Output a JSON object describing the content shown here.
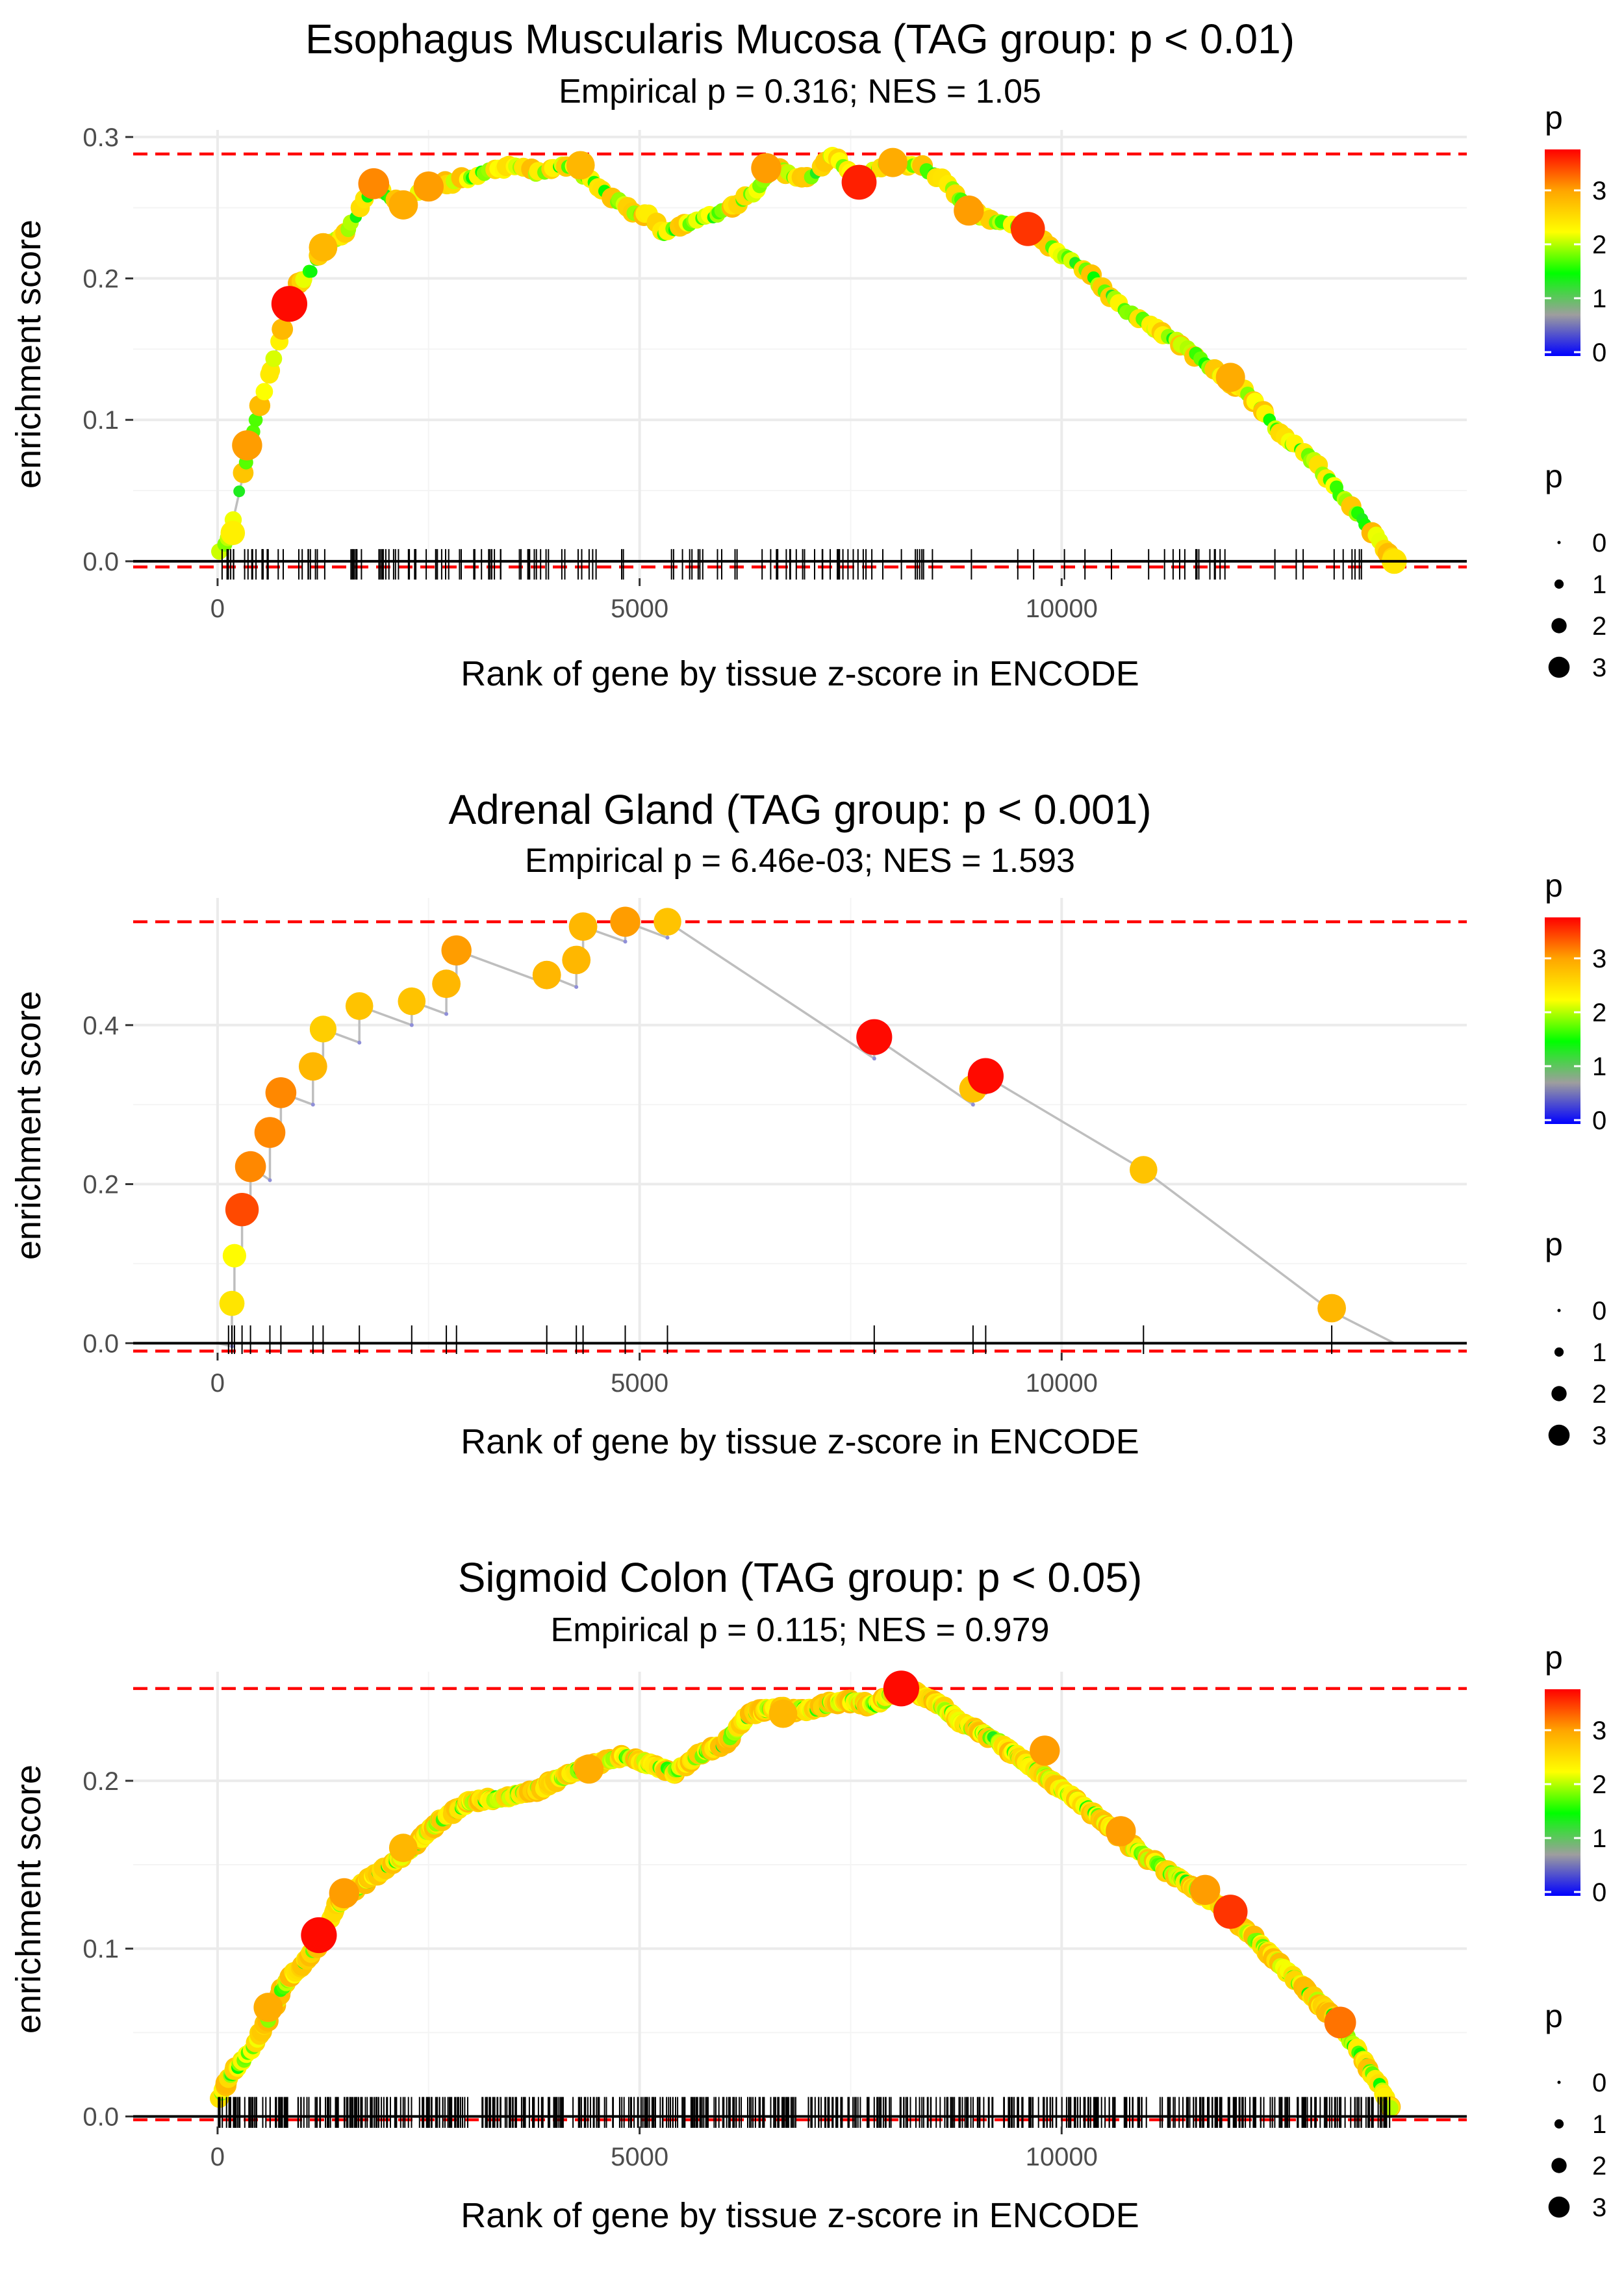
{
  "colors": {
    "threshold_line": "#ff0000",
    "curve": "#bebebe",
    "gridline": "#ebebeb",
    "axis_zero": "#000000",
    "gradient_stops": [
      "#0000ff",
      "#9e9e9e",
      "#00ff00",
      "#ffff00",
      "#ffa500",
      "#ff0000"
    ]
  },
  "legend": {
    "color_title": "p",
    "color_ticks": [
      "0",
      "1",
      "2",
      "3"
    ],
    "size_title": "p",
    "size_ticks": [
      "0",
      "1",
      "2",
      "3"
    ]
  },
  "chart_data": [
    {
      "type": "line",
      "title": "Esophagus Muscularis Mucosa (TAG group: p < 0.01)",
      "subtitle": "Empirical p = 0.316; NES = 1.05",
      "xlabel": "Rank of gene by tissue z-score in ENCODE",
      "ylabel": "enrichment score",
      "xlim": [
        -1000,
        14800
      ],
      "ylim": [
        -0.012,
        0.305
      ],
      "xticks": [
        0,
        5000,
        10000
      ],
      "xtick_labels": [
        "0",
        "5000",
        "10000"
      ],
      "yticks": [
        0,
        0.1,
        0.2,
        0.3
      ],
      "ytick_labels": [
        "0.0",
        "0.1",
        "0.2",
        "0.3"
      ],
      "hlines": [
        0.288,
        -0.004
      ],
      "n_genes": 13940,
      "curve_points": [
        [
          0,
          0.005
        ],
        [
          150,
          0.02
        ],
        [
          300,
          0.06
        ],
        [
          450,
          0.1
        ],
        [
          600,
          0.13
        ],
        [
          750,
          0.16
        ],
        [
          850,
          0.182
        ],
        [
          950,
          0.195
        ],
        [
          1100,
          0.205
        ],
        [
          1250,
          0.222
        ],
        [
          1450,
          0.228
        ],
        [
          1600,
          0.24
        ],
        [
          1850,
          0.267
        ],
        [
          2000,
          0.258
        ],
        [
          2200,
          0.252
        ],
        [
          2500,
          0.265
        ],
        [
          2800,
          0.268
        ],
        [
          3000,
          0.272
        ],
        [
          3200,
          0.275
        ],
        [
          3500,
          0.28
        ],
        [
          3800,
          0.275
        ],
        [
          4000,
          0.278
        ],
        [
          4200,
          0.28
        ],
        [
          4400,
          0.27
        ],
        [
          4900,
          0.248
        ],
        [
          5100,
          0.245
        ],
        [
          5300,
          0.232
        ],
        [
          5600,
          0.24
        ],
        [
          5900,
          0.245
        ],
        [
          6200,
          0.255
        ],
        [
          6400,
          0.262
        ],
        [
          6600,
          0.28
        ],
        [
          6800,
          0.272
        ],
        [
          7000,
          0.27
        ],
        [
          7300,
          0.288
        ],
        [
          7600,
          0.268
        ],
        [
          7800,
          0.278
        ],
        [
          8000,
          0.282
        ],
        [
          8300,
          0.28
        ],
        [
          8600,
          0.27
        ],
        [
          8900,
          0.248
        ],
        [
          9200,
          0.24
        ],
        [
          9600,
          0.235
        ],
        [
          9900,
          0.22
        ],
        [
          10300,
          0.205
        ],
        [
          10700,
          0.18
        ],
        [
          11100,
          0.165
        ],
        [
          11500,
          0.15
        ],
        [
          11900,
          0.13
        ],
        [
          12200,
          0.12
        ],
        [
          12600,
          0.09
        ],
        [
          13000,
          0.07
        ],
        [
          13400,
          0.04
        ],
        [
          13700,
          0.02
        ],
        [
          13940,
          0.0
        ]
      ],
      "gene_count": 160,
      "gene_seed": 11,
      "gene_clusters": [
        [
          0,
          1500,
          0.28
        ],
        [
          1500,
          4500,
          0.3
        ],
        [
          4500,
          5400,
          0.06
        ],
        [
          5400,
          8600,
          0.22
        ],
        [
          8600,
          10800,
          0.04
        ],
        [
          10800,
          12400,
          0.14
        ],
        [
          12400,
          13900,
          0.1
        ]
      ],
      "highlight_points": [
        [
          180,
          0.02,
          2.5
        ],
        [
          350,
          0.082,
          3.2
        ],
        [
          850,
          0.182,
          3.9
        ],
        [
          1250,
          0.222,
          3.0
        ],
        [
          1850,
          0.267,
          3.3
        ],
        [
          2200,
          0.252,
          3.1
        ],
        [
          2500,
          0.265,
          3.2
        ],
        [
          4300,
          0.28,
          3.0
        ],
        [
          6500,
          0.278,
          3.2
        ],
        [
          7600,
          0.268,
          3.8
        ],
        [
          8000,
          0.282,
          3.1
        ],
        [
          8900,
          0.248,
          3.2
        ],
        [
          9600,
          0.235,
          3.7
        ],
        [
          12000,
          0.13,
          3.1
        ],
        [
          13940,
          0.0,
          2.6
        ]
      ]
    },
    {
      "type": "line",
      "title": "Adrenal Gland (TAG group: p < 0.001)",
      "subtitle": "Empirical p = 6.46e-03; NES = 1.593",
      "xlabel": "Rank of gene by tissue z-score in ENCODE",
      "ylabel": "enrichment score",
      "xlim": [
        -1000,
        14800
      ],
      "ylim": [
        -0.012,
        0.56
      ],
      "xticks": [
        0,
        5000,
        10000
      ],
      "xtick_labels": [
        "0",
        "5000",
        "10000"
      ],
      "yticks": [
        0,
        0.2,
        0.4
      ],
      "ytick_labels": [
        "0.0",
        "0.2",
        "0.4"
      ],
      "hlines": [
        0.53,
        -0.01
      ],
      "n_genes": 13940,
      "curve_points": [
        [
          0,
          0.0
        ],
        [
          170,
          -0.004
        ],
        [
          170,
          0.05
        ],
        [
          200,
          0.048
        ],
        [
          200,
          0.11
        ],
        [
          290,
          0.105
        ],
        [
          290,
          0.168
        ],
        [
          390,
          0.162
        ],
        [
          390,
          0.222
        ],
        [
          620,
          0.205
        ],
        [
          620,
          0.265
        ],
        [
          750,
          0.262
        ],
        [
          750,
          0.315
        ],
        [
          1130,
          0.3
        ],
        [
          1130,
          0.348
        ],
        [
          1250,
          0.345
        ],
        [
          1250,
          0.395
        ],
        [
          1680,
          0.378
        ],
        [
          1680,
          0.424
        ],
        [
          2300,
          0.4
        ],
        [
          2300,
          0.43
        ],
        [
          2710,
          0.414
        ],
        [
          2710,
          0.452
        ],
        [
          2830,
          0.448
        ],
        [
          2830,
          0.494
        ],
        [
          3900,
          0.452
        ],
        [
          3900,
          0.463
        ],
        [
          4250,
          0.448
        ],
        [
          4250,
          0.482
        ],
        [
          4330,
          0.48
        ],
        [
          4330,
          0.524
        ],
        [
          4830,
          0.505
        ],
        [
          4830,
          0.53
        ],
        [
          5330,
          0.51
        ],
        [
          5330,
          0.53
        ],
        [
          7780,
          0.358
        ],
        [
          7780,
          0.385
        ],
        [
          8950,
          0.3
        ],
        [
          8950,
          0.32
        ],
        [
          9100,
          0.315
        ],
        [
          9100,
          0.336
        ],
        [
          10970,
          0.218
        ],
        [
          13200,
          0.04
        ],
        [
          13940,
          0.0
        ]
      ],
      "gene_count": 0,
      "gene_seed": 0,
      "gene_clusters": [],
      "rug_positions": [
        130,
        170,
        200,
        290,
        390,
        620,
        750,
        1130,
        1250,
        1680,
        2300,
        2710,
        2830,
        3900,
        4250,
        4330,
        4830,
        5330,
        7780,
        8950,
        9100,
        10970,
        13200
      ],
      "highlight_points": [
        [
          170,
          0.05,
          2.6
        ],
        [
          200,
          0.11,
          2.4
        ],
        [
          290,
          0.168,
          3.6
        ],
        [
          390,
          0.222,
          3.3
        ],
        [
          620,
          0.265,
          3.3
        ],
        [
          750,
          0.315,
          3.3
        ],
        [
          1130,
          0.348,
          3.0
        ],
        [
          1250,
          0.395,
          2.8
        ],
        [
          1680,
          0.424,
          2.9
        ],
        [
          2300,
          0.43,
          2.9
        ],
        [
          2710,
          0.452,
          3.0
        ],
        [
          2830,
          0.494,
          3.2
        ],
        [
          3900,
          0.463,
          3.0
        ],
        [
          4250,
          0.482,
          3.0
        ],
        [
          4330,
          0.524,
          3.0
        ],
        [
          4830,
          0.53,
          3.2
        ],
        [
          5330,
          0.53,
          2.9
        ],
        [
          7780,
          0.385,
          3.9
        ],
        [
          8950,
          0.32,
          2.9
        ],
        [
          9100,
          0.336,
          3.9
        ],
        [
          10970,
          0.218,
          2.9
        ],
        [
          13200,
          0.044,
          3.0
        ]
      ]
    },
    {
      "type": "line",
      "title": "Sigmoid Colon (TAG group: p < 0.05)",
      "subtitle": "Empirical p = 0.115; NES = 0.979",
      "xlabel": "Rank of gene by tissue z-score in ENCODE",
      "ylabel": "enrichment score",
      "xlim": [
        -1000,
        14800
      ],
      "ylim": [
        -0.006,
        0.265
      ],
      "xticks": [
        0,
        5000,
        10000
      ],
      "xtick_labels": [
        "0",
        "5000",
        "10000"
      ],
      "yticks": [
        0,
        0.1,
        0.2
      ],
      "ytick_labels": [
        "0.0",
        "0.1",
        "0.2"
      ],
      "hlines": [
        0.255,
        -0.002
      ],
      "n_genes": 13940,
      "curve_points": [
        [
          0,
          0.01
        ],
        [
          200,
          0.028
        ],
        [
          400,
          0.04
        ],
        [
          600,
          0.058
        ],
        [
          800,
          0.08
        ],
        [
          1000,
          0.09
        ],
        [
          1200,
          0.103
        ],
        [
          1400,
          0.125
        ],
        [
          1700,
          0.138
        ],
        [
          2000,
          0.148
        ],
        [
          2300,
          0.16
        ],
        [
          2600,
          0.175
        ],
        [
          3000,
          0.188
        ],
        [
          3400,
          0.19
        ],
        [
          3800,
          0.195
        ],
        [
          4200,
          0.205
        ],
        [
          4500,
          0.21
        ],
        [
          4800,
          0.215
        ],
        [
          5100,
          0.21
        ],
        [
          5400,
          0.205
        ],
        [
          5700,
          0.215
        ],
        [
          6000,
          0.222
        ],
        [
          6300,
          0.24
        ],
        [
          6600,
          0.243
        ],
        [
          7000,
          0.242
        ],
        [
          7400,
          0.248
        ],
        [
          7800,
          0.245
        ],
        [
          8100,
          0.255
        ],
        [
          8500,
          0.248
        ],
        [
          8800,
          0.235
        ],
        [
          9200,
          0.225
        ],
        [
          9600,
          0.21
        ],
        [
          10000,
          0.195
        ],
        [
          10400,
          0.18
        ],
        [
          10800,
          0.162
        ],
        [
          11200,
          0.148
        ],
        [
          11600,
          0.135
        ],
        [
          12000,
          0.12
        ],
        [
          12400,
          0.1
        ],
        [
          12800,
          0.08
        ],
        [
          13200,
          0.06
        ],
        [
          13500,
          0.04
        ],
        [
          13800,
          0.015
        ],
        [
          13940,
          0.0
        ]
      ],
      "gene_count": 620,
      "gene_seed": 7,
      "gene_clusters": [
        [
          0,
          13900,
          1
        ]
      ],
      "highlight_points": [
        [
          600,
          0.065,
          3.1
        ],
        [
          1200,
          0.108,
          3.9
        ],
        [
          1500,
          0.133,
          3.2
        ],
        [
          2200,
          0.16,
          3.0
        ],
        [
          4400,
          0.207,
          3.1
        ],
        [
          6700,
          0.24,
          3.0
        ],
        [
          8100,
          0.255,
          3.9
        ],
        [
          9800,
          0.218,
          3.2
        ],
        [
          10700,
          0.17,
          3.2
        ],
        [
          11700,
          0.135,
          3.2
        ],
        [
          12000,
          0.122,
          3.7
        ],
        [
          13300,
          0.056,
          3.4
        ]
      ]
    }
  ]
}
